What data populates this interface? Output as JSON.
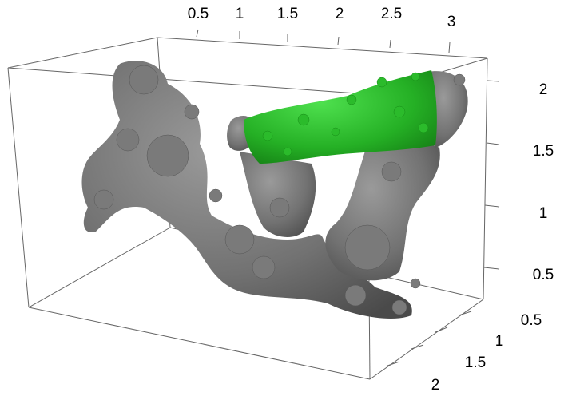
{
  "axes": {
    "x": {
      "ticks": [
        "0.5",
        "1",
        "1.5",
        "2",
        "2.5",
        "3"
      ]
    },
    "z": {
      "ticks": [
        "2",
        "1.5",
        "1",
        "0.5"
      ]
    },
    "y": {
      "ticks": [
        "0.5",
        "1",
        "1.5",
        "2"
      ]
    }
  }
}
